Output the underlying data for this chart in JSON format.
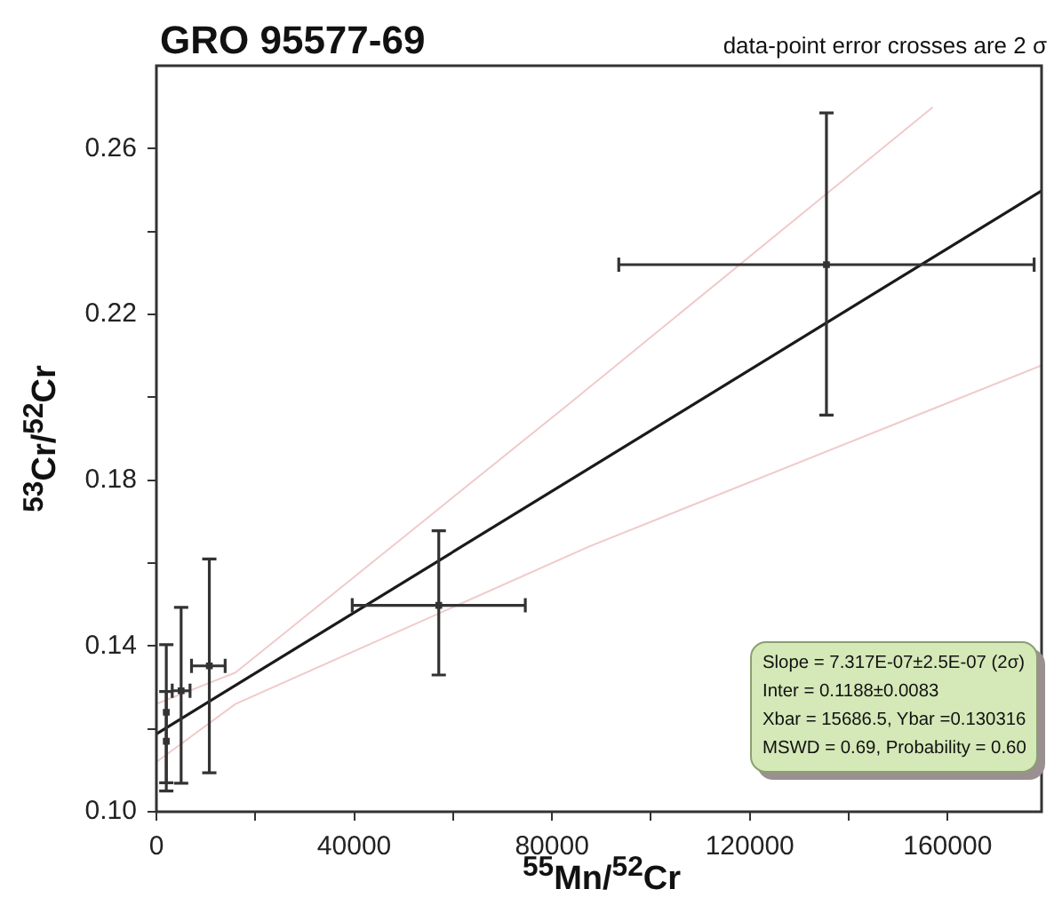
{
  "chart_data": {
    "type": "scatter",
    "title": "GRO 95577-69",
    "xlabel": "$^{55}$Mn/$^{52}$Cr",
    "ylabel": "$^{53}$Cr/$^{52}$Cr",
    "annotations": [
      "data-point error crosses are 2 σ",
      "Slope = 7.317E-07±2.5E-07 (2σ)",
      "Inter = 0.1188±0.0083",
      "Xbar = 15686.5,  Ybar =0.130316",
      "MSWD = 0.69,  Probability = 0.60"
    ],
    "xlim": [
      0,
      179000
    ],
    "ylim": [
      0.1,
      0.28
    ],
    "xticks": [
      0,
      {
        "value": 20000,
        "label": null
      },
      40000,
      {
        "value": 60000,
        "label": null
      },
      80000,
      {
        "value": 100000,
        "label": null
      },
      120000,
      {
        "value": 140000,
        "label": null
      },
      160000
    ],
    "yticks": [
      {
        "value": 0.1,
        "label": "0.10"
      },
      {
        "value": 0.12,
        "label": null
      },
      0.14,
      {
        "value": 0.16,
        "label": null
      },
      0.18,
      {
        "value": 0.2,
        "label": null
      },
      0.22,
      {
        "value": 0.24,
        "label": null
      },
      0.26
    ],
    "grid": false,
    "legend": false,
    "series": [
      {
        "type": "scatter",
        "marker": "square",
        "color": "#333333",
        "x": [
          135500,
          57100,
          10700,
          5000,
          2000,
          2000
        ],
        "values": [
          0.232,
          0.1498,
          0.1352,
          0.1292,
          0.124,
          0.117
        ],
        "errors": [
          [
            0.1957,
            0.2686
          ],
          [
            0.133,
            0.1678
          ],
          [
            0.1094,
            0.161
          ],
          [
            0.1069,
            0.1493
          ],
          [
            0.107,
            0.1403
          ],
          [
            0.105,
            0.129
          ]
        ],
        "xerrors": [
          [
            93500,
            177500
          ],
          [
            39600,
            74600
          ],
          [
            7100,
            13900
          ],
          [
            3200,
            6800
          ],
          null,
          null
        ]
      },
      {
        "type": "line",
        "marker": "none",
        "color": "#1a1a1a",
        "x": [
          0,
          179000
        ],
        "values": [
          0.1188,
          0.2498
        ]
      },
      {
        "type": "line",
        "marker": "none",
        "color": "#f0caca",
        "x": [
          0,
          16000,
          83000,
          157000
        ],
        "values": [
          0.126,
          0.1336,
          0.198,
          0.27
        ]
      },
      {
        "type": "line",
        "marker": "none",
        "color": "#f0caca",
        "x": [
          0,
          16000,
          87500,
          179000
        ],
        "values": [
          0.112,
          0.126,
          0.164,
          0.2077
        ]
      }
    ]
  }
}
